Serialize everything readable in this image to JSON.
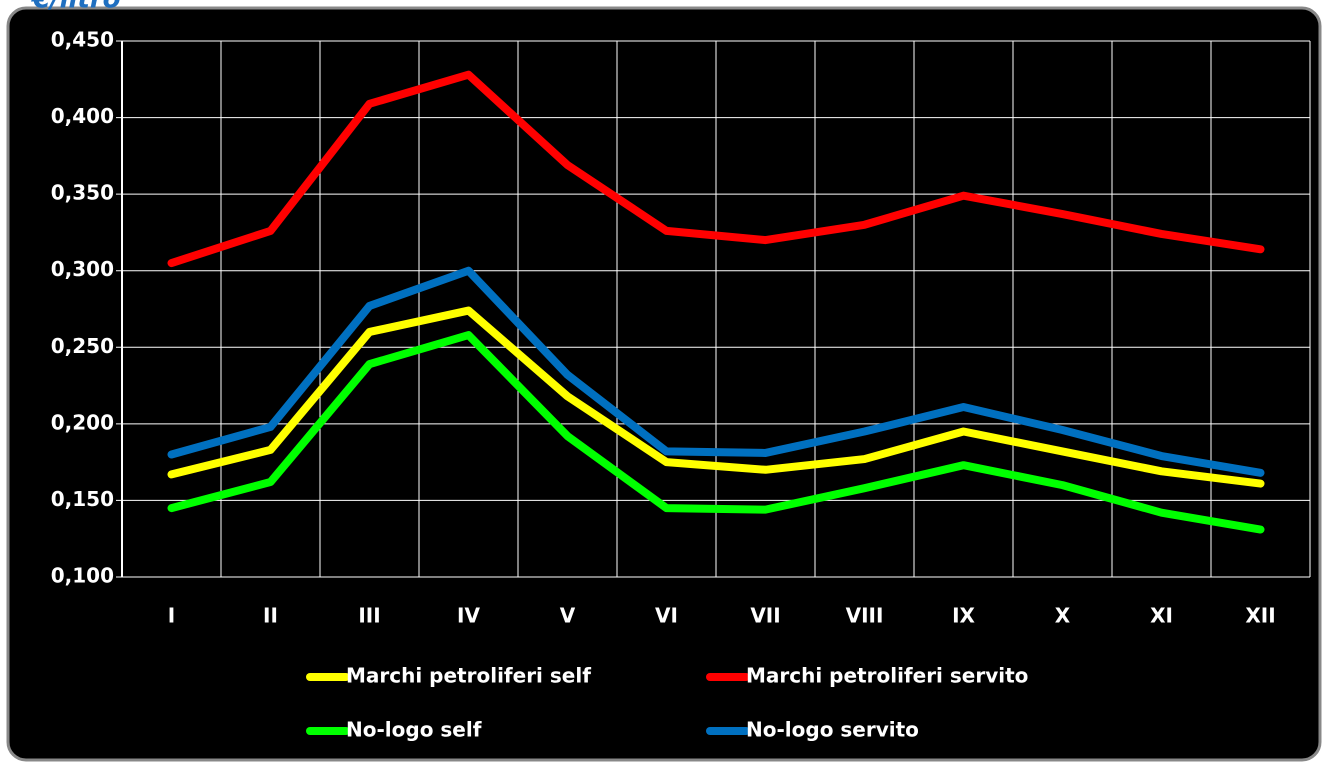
{
  "chart_data": {
    "type": "line",
    "title": "€/litro",
    "categories": [
      "I",
      "II",
      "III",
      "IV",
      "V",
      "VI",
      "VII",
      "VIII",
      "IX",
      "X",
      "XI",
      "XII"
    ],
    "series": [
      {
        "name": "Marchi petroliferi self",
        "color": "#ffff00",
        "values": [
          0.167,
          0.183,
          0.26,
          0.274,
          0.218,
          0.175,
          0.17,
          0.177,
          0.195,
          0.182,
          0.169,
          0.161
        ]
      },
      {
        "name": "Marchi petroliferi servito",
        "color": "#ff0000",
        "values": [
          0.305,
          0.326,
          0.409,
          0.428,
          0.369,
          0.326,
          0.32,
          0.33,
          0.349,
          0.337,
          0.324,
          0.314
        ]
      },
      {
        "name": "No-logo self",
        "color": "#00ff00",
        "values": [
          0.145,
          0.162,
          0.239,
          0.258,
          0.192,
          0.145,
          0.144,
          0.158,
          0.173,
          0.16,
          0.142,
          0.131
        ]
      },
      {
        "name": "No-logo servito",
        "color": "#0070c0",
        "values": [
          0.18,
          0.198,
          0.277,
          0.3,
          0.232,
          0.182,
          0.181,
          0.195,
          0.211,
          0.196,
          0.179,
          0.168
        ]
      }
    ],
    "ylim": [
      0.1,
      0.45
    ],
    "yticks": [
      {
        "value": 0.1,
        "label": "0,100"
      },
      {
        "value": 0.15,
        "label": "0,150"
      },
      {
        "value": 0.2,
        "label": "0,200"
      },
      {
        "value": 0.25,
        "label": "0,250"
      },
      {
        "value": 0.3,
        "label": "0,300"
      },
      {
        "value": 0.35,
        "label": "0,350"
      },
      {
        "value": 0.4,
        "label": "0,400"
      },
      {
        "value": 0.45,
        "label": "0,450"
      }
    ],
    "grid": true,
    "legend": "bottom"
  }
}
